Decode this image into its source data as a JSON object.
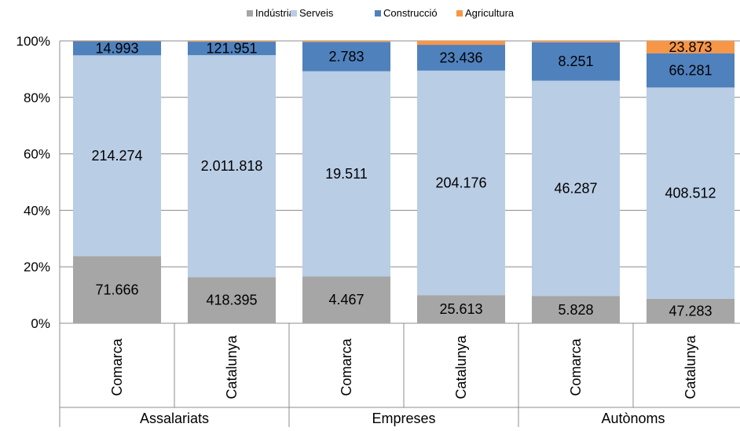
{
  "chart_data": {
    "type": "bar",
    "stacked": true,
    "normalized": true,
    "title": "",
    "xlabel": "",
    "ylabel": "",
    "ylim": [
      0,
      100
    ],
    "yticks": [
      "0%",
      "20%",
      "40%",
      "60%",
      "80%",
      "100%"
    ],
    "grid": true,
    "legend_position": "top",
    "groups": [
      "Assalariats",
      "Empreses",
      "Autònoms"
    ],
    "categories": [
      "Comarca",
      "Catalunya",
      "Comarca",
      "Catalunya",
      "Comarca",
      "Catalunya"
    ],
    "series": [
      {
        "name": "Indústria",
        "color": "#A6A6A6",
        "values": [
          71.666,
          418.395,
          4.467,
          25.613,
          5.828,
          47.283
        ],
        "labels": [
          "71.666",
          "418.395",
          "4.467",
          "25.613",
          "5.828",
          "47.283"
        ]
      },
      {
        "name": "Serveis",
        "color": "#B9CDE5",
        "values": [
          214.274,
          2011.818,
          19.511,
          204.176,
          46.287,
          408.512
        ],
        "labels": [
          "214.274",
          "2.011.818",
          "19.511",
          "204.176",
          "46.287",
          "408.512"
        ]
      },
      {
        "name": "Construcció",
        "color": "#4F81BD",
        "values": [
          14.993,
          121.951,
          2.783,
          23.436,
          8.251,
          66.281
        ],
        "labels": [
          "14.993",
          "121.951",
          "2.783",
          "23.436",
          "8.251",
          "66.281"
        ]
      },
      {
        "name": "Agricultura",
        "color": "#F79646",
        "values": [
          0.4,
          7.5,
          0.1,
          3.6,
          0.3,
          23.873
        ],
        "labels": [
          "",
          "",
          "",
          "",
          "",
          "23.873"
        ]
      }
    ]
  }
}
